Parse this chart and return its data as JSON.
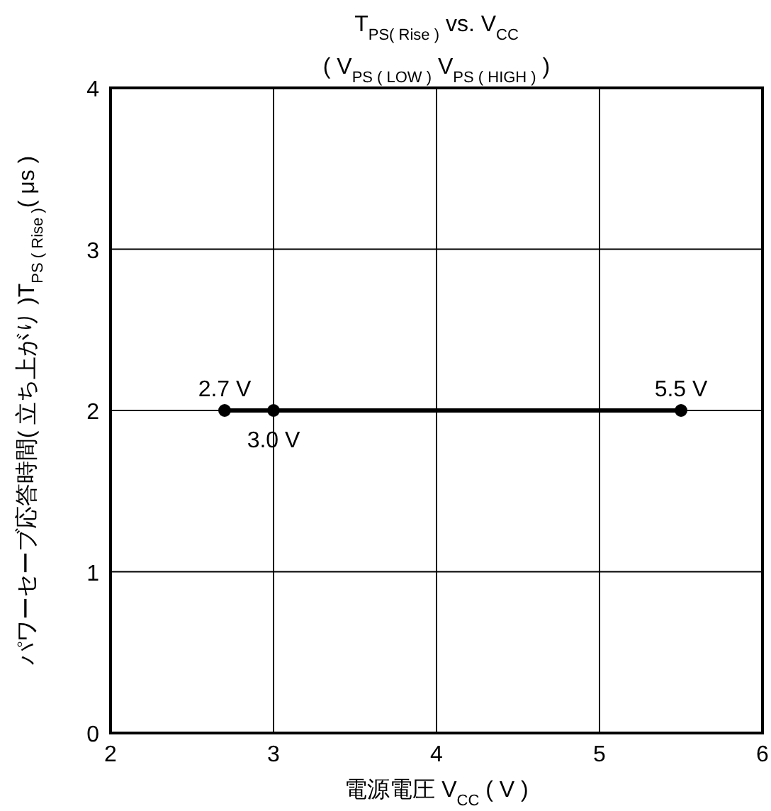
{
  "chart_data": {
    "type": "line",
    "title": "T$_{PS( Rise )}$ vs. V$_{CC}$",
    "subtitle": "( V$_{PS ( LOW )}$     V$_{PS ( HIGH )}$ )",
    "xlabel": "電源電圧 V$_{CC}$ ( V )",
    "ylabel": "パワーセーブ応答時間( 立ち上がり )T$_{PS ( Rise )}$( μs )",
    "x": [
      2.7,
      3.0,
      5.5
    ],
    "series": [
      {
        "color": "#000000",
        "values": [
          2,
          2,
          2
        ]
      }
    ],
    "marker": "circle",
    "line_style": "solid",
    "grid": true,
    "xlim": [
      2,
      6
    ],
    "ylim": [
      0,
      4
    ],
    "xticks": [
      2,
      3,
      4,
      5,
      6
    ],
    "yticks": [
      0,
      1,
      2,
      3,
      4
    ],
    "annotations": [
      {
        "text": "2.7 V",
        "x": 2.7,
        "y": 2
      },
      {
        "text": "3.0 V",
        "x": 3.0,
        "y": 2
      },
      {
        "text": "5.5 V",
        "x": 5.5,
        "y": 2
      }
    ]
  }
}
